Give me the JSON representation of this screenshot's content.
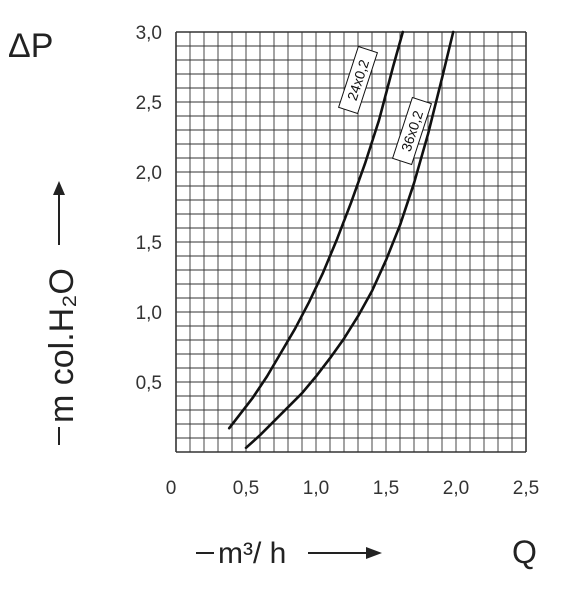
{
  "chart_data": {
    "type": "line",
    "title": "",
    "y_symbol": "ΔP",
    "x_symbol": "Q",
    "ylabel": "m col.H₂O",
    "xlabel": "m³/ h",
    "xlim": [
      0,
      2.5
    ],
    "ylim": [
      0,
      3.0
    ],
    "x_ticks": [
      "0",
      "0,5",
      "1,0",
      "1,5",
      "2,0",
      "2,5"
    ],
    "y_ticks": [
      "0,5",
      "1,0",
      "1,5",
      "2,0",
      "2,5",
      "3,0"
    ],
    "grid": true,
    "series": [
      {
        "name": "24x0.2",
        "x": [
          0.38,
          0.45,
          0.55,
          0.65,
          0.75,
          0.85,
          0.95,
          1.05,
          1.15,
          1.25,
          1.35,
          1.45,
          1.55,
          1.62
        ],
        "y": [
          0.17,
          0.26,
          0.39,
          0.54,
          0.71,
          0.88,
          1.07,
          1.28,
          1.52,
          1.78,
          2.06,
          2.37,
          2.75,
          3.0
        ]
      },
      {
        "name": "36x0.2",
        "x": [
          0.5,
          0.6,
          0.7,
          0.8,
          0.9,
          1.0,
          1.1,
          1.2,
          1.3,
          1.4,
          1.5,
          1.6,
          1.7,
          1.8,
          1.9,
          1.98
        ],
        "y": [
          0.03,
          0.12,
          0.22,
          0.32,
          0.42,
          0.54,
          0.67,
          0.81,
          0.97,
          1.15,
          1.37,
          1.62,
          1.92,
          2.27,
          2.67,
          3.0
        ]
      }
    ]
  }
}
